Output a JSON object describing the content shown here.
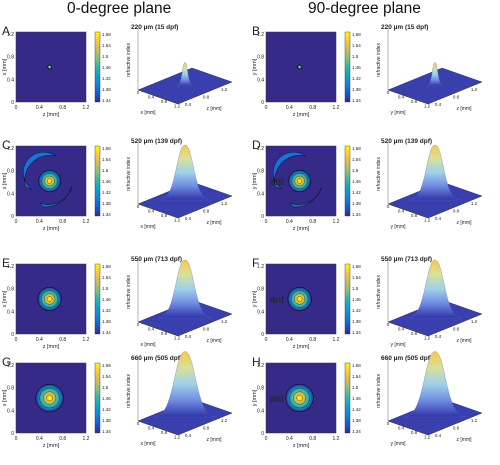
{
  "column_titles": [
    "0-degree plane",
    "90-degree plane"
  ],
  "colorbar_label": "refractive index",
  "surface_axis_label": "refractive index",
  "colormap": [
    "#352a87",
    "#0f5cdd",
    "#1481d6",
    "#06a4ca",
    "#2eb7a4",
    "#87bf77",
    "#d1bb59",
    "#fec832",
    "#f9fb0e"
  ],
  "panels": [
    {
      "letter": "A",
      "title": "220 µm (15 dpf)",
      "h_axis_label": "z [mm]",
      "v_axis_label": "x [mm]",
      "surf_left_label": "x [mm]",
      "surf_right_label": "z [mm]",
      "cb_ticks": [
        "1.58",
        "1.54",
        "1.5",
        "1.46",
        "1.42",
        "1.38",
        "1.34"
      ],
      "blob_size": 0.05,
      "annotation": "",
      "ring": false
    },
    {
      "letter": "B",
      "title": "220 µm (15 dpf)",
      "h_axis_label": "z [mm]",
      "v_axis_label": "y [mm]",
      "surf_left_label": "y [mm]",
      "surf_right_label": "z [mm]",
      "cb_ticks": [
        "1.58",
        "1.54",
        "1.5",
        "1.46",
        "1.42",
        "1.38",
        "1.34"
      ],
      "blob_size": 0.05,
      "annotation": "",
      "ring": false
    },
    {
      "letter": "C",
      "title": "520 µm (139 dpf)",
      "h_axis_label": "z [mm]",
      "v_axis_label": "x [mm]",
      "surf_left_label": "x [mm]",
      "surf_right_label": "z [mm]",
      "cb_ticks": [
        "1.58",
        "1.54",
        "1.5",
        "1.46",
        "1.42",
        "1.38",
        "1.34"
      ],
      "blob_size": 0.26,
      "annotation": "",
      "ring": true
    },
    {
      "letter": "D",
      "title": "520 µm (139 dpf)",
      "h_axis_label": "z [mm]",
      "v_axis_label": "y [mm]",
      "surf_left_label": "y [mm]",
      "surf_right_label": "z [mm]",
      "cb_ticks": [
        "1.58",
        "1.54",
        "1.5",
        "1.46",
        "1.42",
        "1.38",
        "1.34"
      ],
      "blob_size": 0.26,
      "annotation": "ant",
      "ring": true
    },
    {
      "letter": "E",
      "title": "550 µm (713 dpf)",
      "h_axis_label": "z [mm]",
      "v_axis_label": "x [mm]",
      "surf_left_label": "x [mm]",
      "surf_right_label": "z [mm]",
      "cb_ticks": [
        "1.58",
        "1.54",
        "1.5",
        "1.46",
        "1.42",
        "1.38",
        "1.34"
      ],
      "blob_size": 0.28,
      "annotation": "",
      "ring": false
    },
    {
      "letter": "F",
      "title": "550 µm (713 dpf)",
      "h_axis_label": "z [mm]",
      "v_axis_label": "y [mm]",
      "surf_left_label": "y [mm]",
      "surf_right_label": "z [mm]",
      "cb_ticks": [
        "1.58",
        "1.54",
        "1.5",
        "1.46",
        "1.42",
        "1.38",
        "1.34"
      ],
      "blob_size": 0.28,
      "annotation": "ant",
      "ring": false
    },
    {
      "letter": "G",
      "title": "660 µm (505 dpf)",
      "h_axis_label": "z [mm]",
      "v_axis_label": "x [mm]",
      "surf_left_label": "x [mm]",
      "surf_right_label": "z [mm]",
      "cb_ticks": [
        "1.58",
        "1.54",
        "1.5",
        "1.46",
        "1.42",
        "1.38",
        "1.34"
      ],
      "blob_size": 0.33,
      "annotation": "",
      "ring": false
    },
    {
      "letter": "H",
      "title": "660 µm (505 dpf)",
      "h_axis_label": "z [mm]",
      "v_axis_label": "y [mm]",
      "surf_left_label": "y [mm]",
      "surf_right_label": "z [mm]",
      "cb_ticks": [
        "1.58",
        "1.54",
        "1.5",
        "1.46",
        "1.42",
        "1.38",
        "1.34"
      ],
      "blob_size": 0.33,
      "annotation": "ant",
      "ring": false
    }
  ],
  "map_ticks_v": [
    "1.2",
    "0.8",
    "0.4",
    "0"
  ],
  "map_ticks_h": [
    "0",
    "0.4",
    "0.8",
    "1.2"
  ],
  "surf_ticks_left": [
    "0",
    "0.4",
    "0.8",
    "1.2"
  ],
  "surf_ticks_right": [
    "0.4",
    "0.8",
    "1.2"
  ]
}
